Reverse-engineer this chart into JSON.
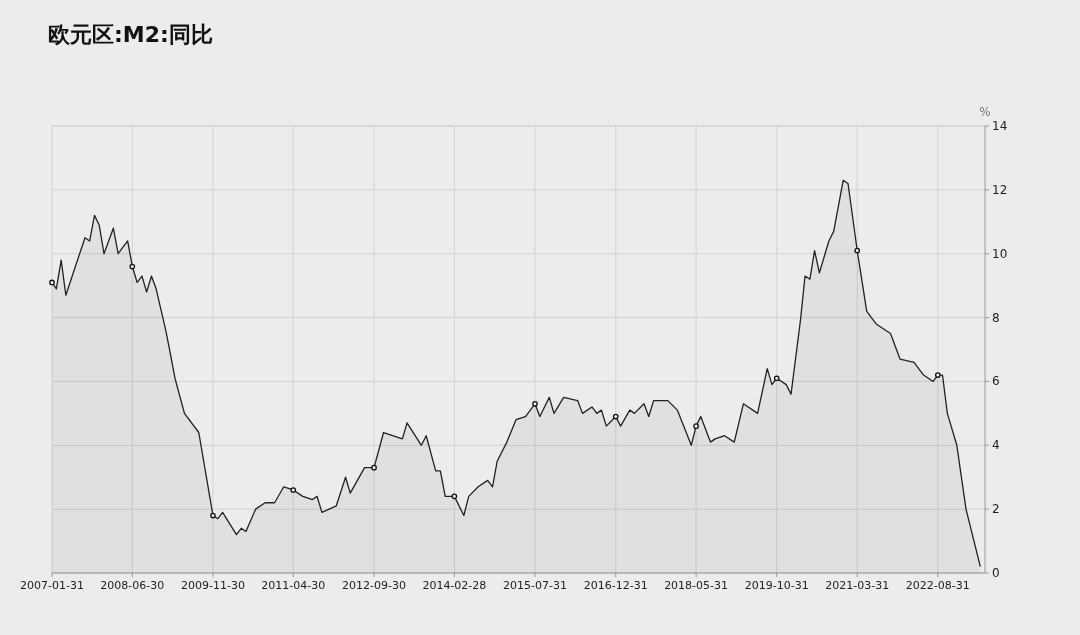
{
  "chart_data": {
    "type": "area",
    "title": "欧元区:M2:同比",
    "ylabel": "%",
    "xlim": [
      "2007-01-31",
      "2023-06-30"
    ],
    "xticks": [
      "2007-01-31",
      "2008-06-30",
      "2009-11-30",
      "2011-04-30",
      "2012-09-30",
      "2014-02-28",
      "2015-07-31",
      "2016-12-31",
      "2018-05-31",
      "2019-10-31",
      "2021-03-31",
      "2022-08-31"
    ],
    "ylim": [
      0,
      14
    ],
    "yticks": [
      0,
      2,
      4,
      6,
      8,
      10,
      12,
      14
    ],
    "grid": true,
    "series": [
      {
        "color": "#222222",
        "x": [
          "2007-01-31",
          "2007-02-28",
          "2007-03-31",
          "2007-04-30",
          "2007-06-30",
          "2007-08-31",
          "2007-09-30",
          "2007-10-31",
          "2007-11-30",
          "2007-12-31",
          "2008-02-29",
          "2008-03-31",
          "2008-05-31",
          "2008-06-30",
          "2008-07-31",
          "2008-08-31",
          "2008-09-30",
          "2008-10-31",
          "2008-11-30",
          "2009-01-31",
          "2009-02-28",
          "2009-03-31",
          "2009-05-31",
          "2009-08-31",
          "2009-11-30",
          "2009-12-31",
          "2010-01-31",
          "2010-04-30",
          "2010-05-31",
          "2010-06-30",
          "2010-08-31",
          "2010-10-31",
          "2010-12-31",
          "2011-02-28",
          "2011-04-30",
          "2011-06-30",
          "2011-08-31",
          "2011-09-30",
          "2011-10-31",
          "2012-01-31",
          "2012-03-31",
          "2012-04-30",
          "2012-07-31",
          "2012-09-30",
          "2012-11-30",
          "2013-03-31",
          "2013-04-30",
          "2013-07-31",
          "2013-08-31",
          "2013-10-31",
          "2013-11-30",
          "2013-12-31",
          "2014-02-28",
          "2014-04-30",
          "2014-05-31",
          "2014-07-31",
          "2014-09-30",
          "2014-10-31",
          "2014-11-30",
          "2015-01-31",
          "2015-03-31",
          "2015-05-31",
          "2015-07-31",
          "2015-08-31",
          "2015-10-31",
          "2015-11-30",
          "2016-01-31",
          "2016-04-30",
          "2016-05-31",
          "2016-07-31",
          "2016-08-31",
          "2016-09-30",
          "2016-10-31",
          "2016-12-31",
          "2017-01-31",
          "2017-03-31",
          "2017-04-30",
          "2017-06-30",
          "2017-07-31",
          "2017-08-31",
          "2017-11-30",
          "2018-01-31",
          "2018-04-30",
          "2018-05-31",
          "2018-06-30",
          "2018-08-31",
          "2018-09-30",
          "2018-11-30",
          "2019-01-31",
          "2019-03-31",
          "2019-06-30",
          "2019-08-31",
          "2019-09-30",
          "2019-10-31",
          "2019-12-31",
          "2020-01-31",
          "2020-03-31",
          "2020-04-30",
          "2020-05-31",
          "2020-06-30",
          "2020-07-31",
          "2020-09-30",
          "2020-10-31",
          "2020-12-31",
          "2021-01-31",
          "2021-03-31",
          "2021-05-31",
          "2021-06-30",
          "2021-07-31",
          "2021-10-31",
          "2021-12-31",
          "2022-03-31",
          "2022-05-31",
          "2022-07-31",
          "2022-08-31",
          "2022-09-30",
          "2022-10-31",
          "2022-12-31",
          "2023-02-28",
          "2023-05-31"
        ],
        "values": [
          9.1,
          8.9,
          9.8,
          8.7,
          9.6,
          10.5,
          10.4,
          11.2,
          10.9,
          10.0,
          10.8,
          10.0,
          10.4,
          9.6,
          9.1,
          9.3,
          8.8,
          9.3,
          8.9,
          7.6,
          6.9,
          6.1,
          5.0,
          4.4,
          1.8,
          1.7,
          1.9,
          1.2,
          1.4,
          1.3,
          2.0,
          2.2,
          2.2,
          2.7,
          2.6,
          2.4,
          2.3,
          2.4,
          1.9,
          2.1,
          3.0,
          2.5,
          3.3,
          3.3,
          4.4,
          4.2,
          4.7,
          4.0,
          4.3,
          3.2,
          3.2,
          2.4,
          2.4,
          1.8,
          2.4,
          2.7,
          2.9,
          2.7,
          3.5,
          4.1,
          4.8,
          4.9,
          5.3,
          4.9,
          5.5,
          5.0,
          5.5,
          5.4,
          5.0,
          5.2,
          5.0,
          5.1,
          4.6,
          4.9,
          4.6,
          5.1,
          5.0,
          5.3,
          4.9,
          5.4,
          5.4,
          5.1,
          4.0,
          4.6,
          4.9,
          4.1,
          4.2,
          4.3,
          4.1,
          5.3,
          5.0,
          6.4,
          5.9,
          6.1,
          5.9,
          5.6,
          7.9,
          9.3,
          9.2,
          10.1,
          9.4,
          10.4,
          10.7,
          12.3,
          12.2,
          10.1,
          8.2,
          8.0,
          7.8,
          7.5,
          6.7,
          6.6,
          6.2,
          6.0,
          6.2,
          6.2,
          5.0,
          4.0,
          2.0,
          0.2
        ]
      },
      {
        "type": "scatter",
        "marker": "circle",
        "color": "#111111",
        "x": [
          "2007-01-31",
          "2008-06-30",
          "2009-11-30",
          "2011-04-30",
          "2012-09-30",
          "2014-02-28",
          "2015-07-31",
          "2016-12-31",
          "2018-05-31",
          "2019-10-31",
          "2021-03-31",
          "2022-08-31"
        ],
        "values": [
          9.1,
          9.6,
          1.8,
          2.6,
          3.3,
          2.4,
          5.3,
          4.9,
          4.6,
          6.1,
          10.1,
          6.2
        ]
      }
    ]
  }
}
